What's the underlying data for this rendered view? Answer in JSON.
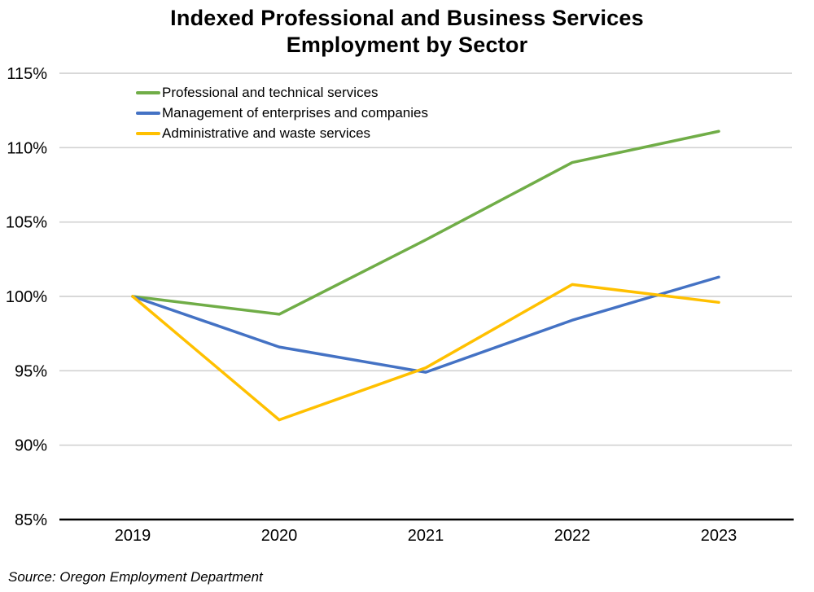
{
  "title": {
    "line1": "Indexed Professional and Business Services",
    "line2": "Employment by Sector"
  },
  "source": "Source: Oregon Employment Department",
  "chart_data": {
    "type": "line",
    "title": "Indexed Professional and Business Services Employment by Sector",
    "categories": [
      "2019",
      "2020",
      "2021",
      "2022",
      "2023"
    ],
    "series": [
      {
        "name": "Professional and technical services",
        "color": "#70AD47",
        "values": [
          100,
          98.8,
          103.8,
          109.0,
          111.1
        ]
      },
      {
        "name": "Management of enterprises and companies",
        "color": "#4472C4",
        "values": [
          100,
          96.6,
          94.9,
          98.4,
          101.3
        ]
      },
      {
        "name": "Administrative and waste services",
        "color": "#FFC000",
        "values": [
          100,
          91.7,
          95.2,
          100.8,
          99.6
        ]
      }
    ],
    "xlabel": "",
    "ylabel": "",
    "ylim": [
      85,
      115
    ],
    "ytick_step": 5,
    "ytick_format": "percent",
    "grid": true,
    "legend_position": "top-left-inside",
    "gridline_color": "#D2D2D2",
    "axis_color": "#000000",
    "text_color": "#000000"
  }
}
